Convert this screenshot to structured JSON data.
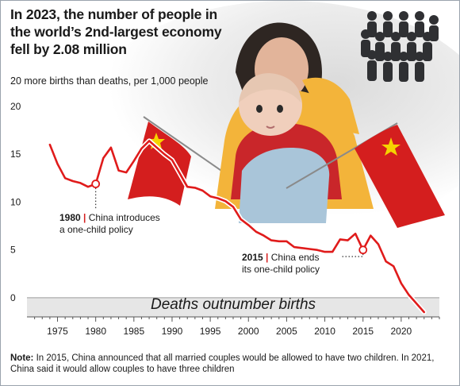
{
  "headline": "In 2023, the number of people in the world’s 2nd-largest economy fell by 2.08 million",
  "subtitle": "20 more births than deaths, per 1,000 people",
  "annotations": [
    {
      "year_label": "1980",
      "text": "China introduces",
      "text2": "a one-child policy"
    },
    {
      "year_label": "2015",
      "text": "China ends",
      "text2": "its one-child policy"
    }
  ],
  "negative_region_label": "Deaths outnumber births",
  "note_label": "Note:",
  "note_text": " In 2015, China announced that all married couples would be allowed to have two children. In 2021, China said it would allow couples to have three children",
  "colors": {
    "line": "#e01b1b",
    "flag": "#d41e1e",
    "star": "#f6d300",
    "neg_band": "#e6e6e6",
    "grid": "#c8c8c8"
  },
  "icons": [
    "people-crowd-icon",
    "china-flag-icon"
  ],
  "chart_data": {
    "type": "line",
    "title": "20 more births than deaths, per 1,000 people",
    "xlabel": "",
    "ylabel": "",
    "xlim": [
      1971,
      2025
    ],
    "ylim": [
      -2,
      20
    ],
    "x_ticks": [
      1975,
      1980,
      1985,
      1990,
      1995,
      2000,
      2005,
      2010,
      2015,
      2020
    ],
    "y_ticks": [
      0,
      5,
      10,
      15,
      20
    ],
    "grid": false,
    "highlighted_points": [
      1980,
      2015
    ],
    "series": [
      {
        "x": [
          1974,
          1975,
          1976,
          1977,
          1978,
          1979,
          1980,
          1981,
          1982,
          1983,
          1984,
          1985,
          1986,
          1987,
          1988,
          1989,
          1990,
          1991,
          1992,
          1993,
          1994,
          1995,
          1996,
          1997,
          1998,
          1999,
          2000,
          2001,
          2002,
          2003,
          2004,
          2005,
          2006,
          2007,
          2008,
          2009,
          2010,
          2011,
          2012,
          2013,
          2014,
          2015,
          2016,
          2017,
          2018,
          2019,
          2020,
          2021,
          2022,
          2023
        ],
        "y": [
          16.0,
          14.0,
          12.5,
          12.2,
          12.0,
          11.6,
          11.9,
          14.6,
          15.7,
          13.3,
          13.1,
          14.3,
          15.6,
          16.4,
          15.7,
          15.0,
          14.4,
          13.0,
          11.6,
          11.5,
          11.2,
          10.6,
          10.4,
          10.1,
          9.5,
          8.2,
          7.6,
          6.9,
          6.5,
          6.0,
          5.9,
          5.9,
          5.3,
          5.2,
          5.1,
          5.0,
          4.8,
          4.8,
          6.1,
          6.0,
          6.7,
          5.0,
          6.5,
          5.6,
          3.8,
          3.3,
          1.5,
          0.3,
          -0.6,
          -1.5
        ]
      }
    ]
  }
}
